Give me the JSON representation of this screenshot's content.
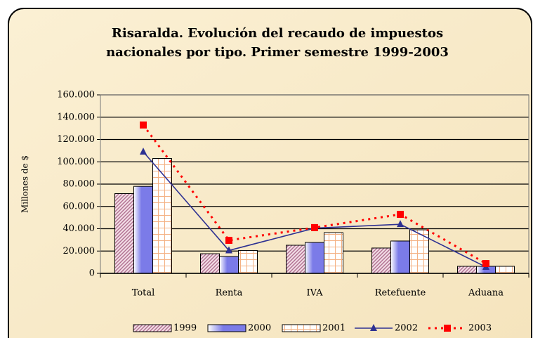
{
  "chart_data": {
    "type": "bar",
    "title": [
      "Risaralda. Evolución del recaudo de impuestos",
      "nacionales por tipo. Primer semestre 1999-2003"
    ],
    "ylabel": "Millones de $",
    "categories": [
      "Total",
      "Renta",
      "IVA",
      "Retefuente",
      "Aduana"
    ],
    "series": [
      {
        "name": "1999",
        "type": "bar",
        "color": "#b07090",
        "values": [
          71500,
          17600,
          25200,
          22700,
          6300
        ]
      },
      {
        "name": "2000",
        "type": "bar",
        "color": "#7b7be8",
        "values": [
          78000,
          15100,
          27700,
          29000,
          6300
        ]
      },
      {
        "name": "2001",
        "type": "bar",
        "color": "#f4b183",
        "values": [
          103000,
          20500,
          36500,
          39000,
          6300
        ]
      },
      {
        "name": "2002",
        "type": "line",
        "color": "#2e3192",
        "values": [
          109000,
          20500,
          40500,
          44000,
          5700
        ]
      },
      {
        "name": "2003",
        "type": "line",
        "color": "#ff0000",
        "values": [
          133000,
          29600,
          41000,
          52900,
          8800
        ]
      }
    ],
    "ylim": [
      0,
      160000
    ],
    "yticks": [
      {
        "value": 0,
        "label": "0"
      },
      {
        "value": 20000,
        "label": "20.000"
      },
      {
        "value": 40000,
        "label": "40.000"
      },
      {
        "value": 60000,
        "label": "60.000"
      },
      {
        "value": 80000,
        "label": "80.000"
      },
      {
        "value": 100000,
        "label": "100.000"
      },
      {
        "value": 120000,
        "label": "120.000"
      },
      {
        "value": 140000,
        "label": "140.000"
      },
      {
        "value": 160000,
        "label": "160.000"
      }
    ],
    "grid": true
  }
}
